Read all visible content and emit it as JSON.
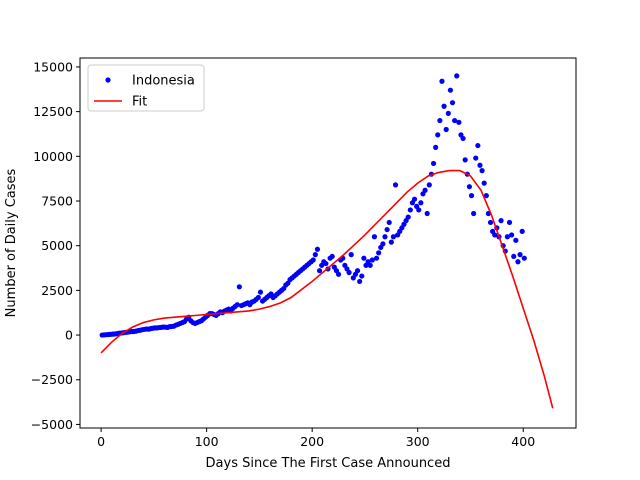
{
  "chart_data": {
    "type": "scatter",
    "title": "",
    "xlabel": "Days Since The First Case Announced",
    "ylabel": "Number of Daily Cases",
    "xlim": [
      -20,
      450
    ],
    "ylim": [
      -5200,
      15500
    ],
    "xticks": [
      0,
      100,
      200,
      300,
      400
    ],
    "yticks": [
      -5000,
      -2500,
      0,
      2500,
      5000,
      7500,
      10000,
      12500,
      15000
    ],
    "grid": false,
    "legend": {
      "position": "upper left"
    },
    "series": [
      {
        "name": "Indonesia",
        "kind": "scatter",
        "color": "#0000ff",
        "points": [
          [
            1,
            0
          ],
          [
            3,
            10
          ],
          [
            5,
            20
          ],
          [
            7,
            30
          ],
          [
            9,
            40
          ],
          [
            11,
            50
          ],
          [
            13,
            60
          ],
          [
            15,
            80
          ],
          [
            17,
            100
          ],
          [
            19,
            110
          ],
          [
            21,
            130
          ],
          [
            23,
            150
          ],
          [
            25,
            160
          ],
          [
            27,
            180
          ],
          [
            29,
            200
          ],
          [
            31,
            200
          ],
          [
            33,
            220
          ],
          [
            35,
            250
          ],
          [
            37,
            270
          ],
          [
            39,
            300
          ],
          [
            41,
            320
          ],
          [
            43,
            340
          ],
          [
            45,
            330
          ],
          [
            47,
            360
          ],
          [
            49,
            380
          ],
          [
            51,
            400
          ],
          [
            53,
            400
          ],
          [
            55,
            420
          ],
          [
            57,
            430
          ],
          [
            59,
            450
          ],
          [
            61,
            440
          ],
          [
            63,
            430
          ],
          [
            65,
            470
          ],
          [
            67,
            480
          ],
          [
            69,
            500
          ],
          [
            71,
            560
          ],
          [
            73,
            600
          ],
          [
            75,
            650
          ],
          [
            77,
            700
          ],
          [
            79,
            750
          ],
          [
            81,
            900
          ],
          [
            83,
            1000
          ],
          [
            85,
            800
          ],
          [
            87,
            700
          ],
          [
            89,
            650
          ],
          [
            91,
            700
          ],
          [
            93,
            750
          ],
          [
            95,
            800
          ],
          [
            97,
            900
          ],
          [
            99,
            1000
          ],
          [
            101,
            1100
          ],
          [
            103,
            1200
          ],
          [
            105,
            1200
          ],
          [
            107,
            1150
          ],
          [
            109,
            1100
          ],
          [
            111,
            1200
          ],
          [
            113,
            1300
          ],
          [
            115,
            1250
          ],
          [
            117,
            1350
          ],
          [
            119,
            1400
          ],
          [
            121,
            1450
          ],
          [
            123,
            1350
          ],
          [
            125,
            1500
          ],
          [
            127,
            1600
          ],
          [
            129,
            1700
          ],
          [
            131,
            2700
          ],
          [
            133,
            1650
          ],
          [
            135,
            1700
          ],
          [
            137,
            1750
          ],
          [
            139,
            1800
          ],
          [
            141,
            1700
          ],
          [
            143,
            1850
          ],
          [
            145,
            1900
          ],
          [
            147,
            2000
          ],
          [
            149,
            2100
          ],
          [
            151,
            2400
          ],
          [
            153,
            1900
          ],
          [
            155,
            2000
          ],
          [
            157,
            2100
          ],
          [
            159,
            2200
          ],
          [
            161,
            2300
          ],
          [
            163,
            2100
          ],
          [
            165,
            2200
          ],
          [
            167,
            2300
          ],
          [
            169,
            2400
          ],
          [
            171,
            2500
          ],
          [
            173,
            2600
          ],
          [
            175,
            2800
          ],
          [
            177,
            2900
          ],
          [
            179,
            3100
          ],
          [
            181,
            3200
          ],
          [
            183,
            3300
          ],
          [
            185,
            3400
          ],
          [
            187,
            3500
          ],
          [
            189,
            3600
          ],
          [
            191,
            3700
          ],
          [
            193,
            3800
          ],
          [
            195,
            3900
          ],
          [
            197,
            4000
          ],
          [
            199,
            4100
          ],
          [
            201,
            4200
          ],
          [
            203,
            4500
          ],
          [
            205,
            4800
          ],
          [
            207,
            3600
          ],
          [
            209,
            3900
          ],
          [
            211,
            4100
          ],
          [
            213,
            4000
          ],
          [
            215,
            3700
          ],
          [
            217,
            4300
          ],
          [
            219,
            4400
          ],
          [
            221,
            3800
          ],
          [
            223,
            3600
          ],
          [
            225,
            3400
          ],
          [
            227,
            4200
          ],
          [
            229,
            4300
          ],
          [
            231,
            3900
          ],
          [
            233,
            3700
          ],
          [
            235,
            3500
          ],
          [
            237,
            4500
          ],
          [
            239,
            3200
          ],
          [
            241,
            3400
          ],
          [
            243,
            3600
          ],
          [
            245,
            3000
          ],
          [
            247,
            3300
          ],
          [
            249,
            4300
          ],
          [
            251,
            3900
          ],
          [
            253,
            4100
          ],
          [
            255,
            3900
          ],
          [
            257,
            4200
          ],
          [
            259,
            5500
          ],
          [
            261,
            4300
          ],
          [
            263,
            4600
          ],
          [
            265,
            4900
          ],
          [
            267,
            5100
          ],
          [
            269,
            5500
          ],
          [
            271,
            5900
          ],
          [
            273,
            6300
          ],
          [
            275,
            5200
          ],
          [
            277,
            5500
          ],
          [
            279,
            8400
          ],
          [
            281,
            5600
          ],
          [
            283,
            5800
          ],
          [
            285,
            6000
          ],
          [
            287,
            6200
          ],
          [
            289,
            6400
          ],
          [
            291,
            6600
          ],
          [
            293,
            7000
          ],
          [
            295,
            7400
          ],
          [
            297,
            7600
          ],
          [
            299,
            7200
          ],
          [
            301,
            7000
          ],
          [
            303,
            7400
          ],
          [
            305,
            7900
          ],
          [
            307,
            8100
          ],
          [
            309,
            6800
          ],
          [
            311,
            8400
          ],
          [
            313,
            9000
          ],
          [
            315,
            9600
          ],
          [
            317,
            10500
          ],
          [
            319,
            11200
          ],
          [
            321,
            12000
          ],
          [
            323,
            14200
          ],
          [
            325,
            12800
          ],
          [
            327,
            11500
          ],
          [
            329,
            12400
          ],
          [
            331,
            13700
          ],
          [
            333,
            13000
          ],
          [
            335,
            12000
          ],
          [
            337,
            14500
          ],
          [
            339,
            11900
          ],
          [
            341,
            11200
          ],
          [
            343,
            11000
          ],
          [
            345,
            9800
          ],
          [
            347,
            9000
          ],
          [
            349,
            8300
          ],
          [
            351,
            7800
          ],
          [
            353,
            6800
          ],
          [
            355,
            9900
          ],
          [
            357,
            10600
          ],
          [
            359,
            9500
          ],
          [
            361,
            9200
          ],
          [
            363,
            8500
          ],
          [
            365,
            7800
          ],
          [
            367,
            6800
          ],
          [
            369,
            6300
          ],
          [
            371,
            5800
          ],
          [
            373,
            5600
          ],
          [
            375,
            6000
          ],
          [
            377,
            5500
          ],
          [
            379,
            6400
          ],
          [
            381,
            5000
          ],
          [
            383,
            4700
          ],
          [
            385,
            5500
          ],
          [
            387,
            6300
          ],
          [
            389,
            5600
          ],
          [
            391,
            4400
          ],
          [
            393,
            5300
          ],
          [
            395,
            4100
          ],
          [
            397,
            4500
          ],
          [
            399,
            5800
          ],
          [
            401,
            4300
          ]
        ]
      },
      {
        "name": "Fit",
        "kind": "line",
        "color": "#ff0000",
        "points": [
          [
            0,
            -1000
          ],
          [
            10,
            -400
          ],
          [
            20,
            100
          ],
          [
            30,
            450
          ],
          [
            40,
            700
          ],
          [
            50,
            850
          ],
          [
            60,
            950
          ],
          [
            70,
            1000
          ],
          [
            80,
            1050
          ],
          [
            90,
            1100
          ],
          [
            100,
            1150
          ],
          [
            110,
            1200
          ],
          [
            120,
            1250
          ],
          [
            130,
            1300
          ],
          [
            140,
            1350
          ],
          [
            150,
            1450
          ],
          [
            160,
            1600
          ],
          [
            170,
            1800
          ],
          [
            180,
            2100
          ],
          [
            190,
            2550
          ],
          [
            200,
            3000
          ],
          [
            210,
            3500
          ],
          [
            220,
            4000
          ],
          [
            230,
            4500
          ],
          [
            240,
            5050
          ],
          [
            250,
            5600
          ],
          [
            260,
            6200
          ],
          [
            270,
            6800
          ],
          [
            280,
            7400
          ],
          [
            290,
            8000
          ],
          [
            300,
            8500
          ],
          [
            310,
            8900
          ],
          [
            320,
            9100
          ],
          [
            330,
            9200
          ],
          [
            340,
            9200
          ],
          [
            350,
            8900
          ],
          [
            360,
            8100
          ],
          [
            370,
            6700
          ],
          [
            380,
            5000
          ],
          [
            390,
            3300
          ],
          [
            400,
            1500
          ],
          [
            410,
            -300
          ],
          [
            420,
            -2300
          ],
          [
            428,
            -4100
          ]
        ]
      }
    ]
  }
}
